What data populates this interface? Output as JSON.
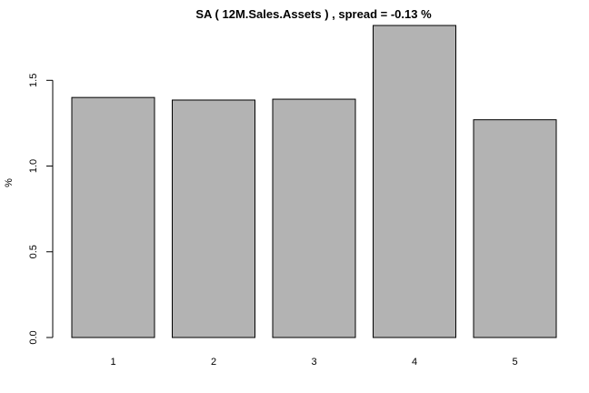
{
  "chart_data": {
    "type": "bar",
    "title": "SA ( 12M.Sales.Assets ) , spread = -0.13 %",
    "xlabel": "",
    "ylabel": "%",
    "categories": [
      "1",
      "2",
      "3",
      "4",
      "5"
    ],
    "values": [
      1.4,
      1.385,
      1.39,
      1.82,
      1.27
    ],
    "ylim": [
      0,
      1.82
    ],
    "yticks": [
      0.0,
      0.5,
      1.0,
      1.5
    ],
    "ytick_labels": [
      "0.0",
      "0.5",
      "1.0",
      "1.5"
    ],
    "bar_color": "#b3b3b3",
    "grid": false,
    "legend": "none"
  }
}
